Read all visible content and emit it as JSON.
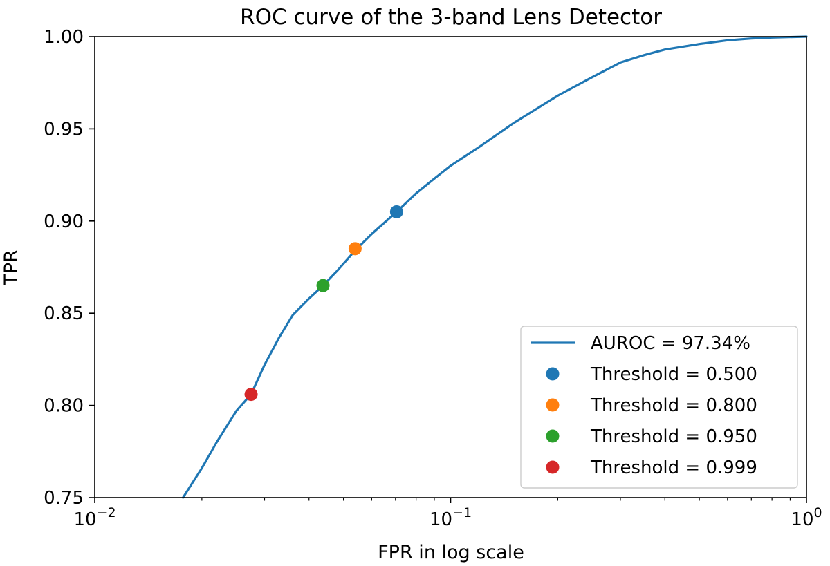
{
  "chart_data": {
    "type": "line",
    "title": "ROC curve of the 3-band Lens Detector",
    "xlabel": "FPR in log scale",
    "ylabel": "TPR",
    "x_scale": "log",
    "xlim": [
      0.01,
      1
    ],
    "ylim": [
      0.75,
      1.0
    ],
    "grid": false,
    "legend_position": "bottom-right",
    "x_ticks": [
      {
        "value": 0.01,
        "base": "10",
        "exp": "−2"
      },
      {
        "value": 0.1,
        "base": "10",
        "exp": "−1"
      },
      {
        "value": 1,
        "base": "10",
        "exp": "0"
      }
    ],
    "y_ticks": [
      {
        "value": 0.75,
        "label": "0.75"
      },
      {
        "value": 0.8,
        "label": "0.80"
      },
      {
        "value": 0.85,
        "label": "0.85"
      },
      {
        "value": 0.9,
        "label": "0.90"
      },
      {
        "value": 0.95,
        "label": "0.95"
      },
      {
        "value": 1.0,
        "label": "1.00"
      }
    ],
    "series": [
      {
        "name": "AUROC = 97.34%",
        "color": "#1f77b4",
        "x": [
          0.0177,
          0.02,
          0.022,
          0.025,
          0.0275,
          0.03,
          0.033,
          0.036,
          0.04,
          0.0438,
          0.048,
          0.0539,
          0.06,
          0.0705,
          0.08,
          0.09,
          0.1,
          0.12,
          0.15,
          0.2,
          0.25,
          0.3,
          0.35,
          0.4,
          0.5,
          0.6,
          0.7,
          0.8,
          1.0
        ],
        "y": [
          0.75,
          0.766,
          0.78,
          0.797,
          0.806,
          0.822,
          0.837,
          0.849,
          0.858,
          0.865,
          0.873,
          0.884,
          0.893,
          0.905,
          0.915,
          0.923,
          0.93,
          0.94,
          0.953,
          0.968,
          0.978,
          0.986,
          0.99,
          0.993,
          0.996,
          0.998,
          0.999,
          0.9995,
          1.0
        ]
      }
    ],
    "threshold_points": [
      {
        "name": "Threshold = 0.500",
        "color": "#1f77b4",
        "x": 0.0705,
        "y": 0.905
      },
      {
        "name": "Threshold = 0.800",
        "color": "#ff7f0e",
        "x": 0.0539,
        "y": 0.885
      },
      {
        "name": "Threshold = 0.950",
        "color": "#2ca02c",
        "x": 0.0438,
        "y": 0.865
      },
      {
        "name": "Threshold = 0.999",
        "color": "#d62728",
        "x": 0.0275,
        "y": 0.806
      }
    ]
  }
}
